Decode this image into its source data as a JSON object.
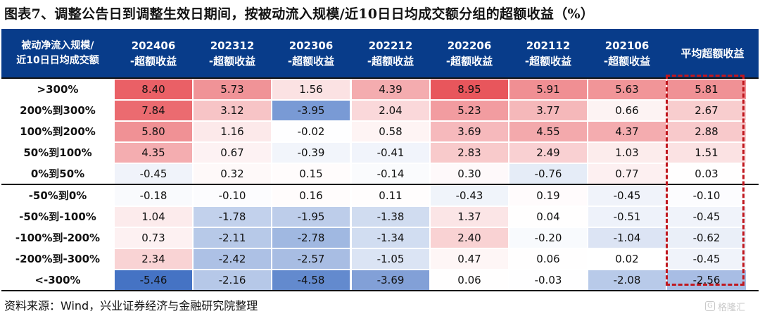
{
  "title": "图表7、调整公告日到调整生效日期间，按被动流入规模/近10日日均成交额分组的超额收益（%）",
  "header": {
    "first_line1": "被动净流入规模/",
    "first_line2": "近10日日均成交额",
    "columns": [
      {
        "period": "202406",
        "label": "-超额收益"
      },
      {
        "period": "202312",
        "label": "-超额收益"
      },
      {
        "period": "202306",
        "label": "-超额收益"
      },
      {
        "period": "202212",
        "label": "-超额收益"
      },
      {
        "period": "202206",
        "label": "-超额收益"
      },
      {
        "period": "202112",
        "label": "-超额收益"
      },
      {
        "period": "202106",
        "label": "-超额收益"
      }
    ],
    "avg_label": "平均超额收益"
  },
  "rows": [
    {
      "label": ">300%",
      "values": [
        "8.40",
        "5.73",
        "1.56",
        "4.39",
        "8.95",
        "5.91",
        "5.63"
      ],
      "avg": "5.81"
    },
    {
      "label": "200%到300%",
      "values": [
        "7.84",
        "3.12",
        "-3.95",
        "2.04",
        "5.23",
        "3.77",
        "0.66"
      ],
      "avg": "2.67"
    },
    {
      "label": "100%到200%",
      "values": [
        "5.80",
        "1.16",
        "-0.02",
        "0.58",
        "3.69",
        "4.55",
        "4.37"
      ],
      "avg": "2.88"
    },
    {
      "label": "50%到100%",
      "values": [
        "4.35",
        "0.67",
        "-0.39",
        "-0.41",
        "2.83",
        "2.49",
        "1.03"
      ],
      "avg": "1.51"
    },
    {
      "label": "0%到50%",
      "values": [
        "-0.45",
        "0.32",
        "0.15",
        "-0.14",
        "0.30",
        "-0.76",
        "0.77"
      ],
      "avg": "0.03"
    },
    {
      "label": "-50%到0%",
      "values": [
        "-0.18",
        "-0.10",
        "0.16",
        "0.11",
        "-0.43",
        "0.19",
        "-0.45"
      ],
      "avg": "-0.10"
    },
    {
      "label": "-50%到-100%",
      "values": [
        "1.04",
        "-1.78",
        "-1.95",
        "-1.38",
        "1.37",
        "0.04",
        "-0.51"
      ],
      "avg": "-0.45"
    },
    {
      "label": "-100%到-200%",
      "values": [
        "0.73",
        "-2.11",
        "-2.78",
        "-1.34",
        "2.40",
        "-0.20",
        "-1.04"
      ],
      "avg": "-0.62"
    },
    {
      "label": "-200%到-300%",
      "values": [
        "2.34",
        "-2.42",
        "-2.57",
        "-1.05",
        "0.47",
        "0.06",
        "0.02"
      ],
      "avg": "-0.45"
    },
    {
      "label": "<-300%",
      "values": [
        "-5.46",
        "-2.16",
        "-4.58",
        "-3.69",
        "0.06",
        "-0.03",
        "-2.08"
      ],
      "avg": "-2.56"
    }
  ],
  "source": "资料来源：Wind，兴业证券经济与金融研究院整理",
  "watermark": "格隆汇",
  "colors": {
    "header_bg": "#083c8a",
    "positive": "#e8555b",
    "negative": "#4472c4",
    "highlight_box": "#c0171e"
  }
}
